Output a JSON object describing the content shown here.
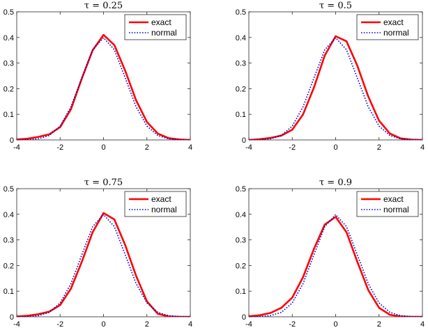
{
  "colors": {
    "exact": "#ff0000",
    "normal": "#0000cc",
    "axis": "#262626",
    "background": "#ffffff"
  },
  "chart_data": [
    {
      "type": "line",
      "title": "τ = 0.25",
      "xlim": [
        -4,
        4
      ],
      "ylim": [
        0,
        0.5
      ],
      "xticks": [
        "-4",
        "-2",
        "0",
        "2",
        "4"
      ],
      "yticks": [
        "0",
        "0.1",
        "0.2",
        "0.3",
        "0.4",
        "0.5"
      ],
      "legend": {
        "position": "top-right",
        "entries": [
          "exact",
          "normal"
        ]
      },
      "series": [
        {
          "name": "exact",
          "style": "solid",
          "x": [
            -4,
            -3.5,
            -3,
            -2.5,
            -2,
            -1.5,
            -1,
            -0.5,
            0,
            0.5,
            1,
            1.5,
            2,
            2.5,
            3,
            3.5,
            4
          ],
          "y": [
            0.002,
            0.005,
            0.012,
            0.022,
            0.05,
            0.12,
            0.24,
            0.35,
            0.41,
            0.37,
            0.27,
            0.155,
            0.07,
            0.025,
            0.007,
            0.002,
            0.0
          ]
        },
        {
          "name": "normal",
          "style": "dotted",
          "x": [
            -4,
            -3.5,
            -3,
            -2.5,
            -2,
            -1.5,
            -1,
            -0.5,
            0,
            0.5,
            1,
            1.5,
            2,
            2.5,
            3,
            3.5,
            4
          ],
          "y": [
            0.0001,
            0.0009,
            0.0044,
            0.0175,
            0.054,
            0.1295,
            0.242,
            0.352,
            0.399,
            0.352,
            0.242,
            0.1295,
            0.054,
            0.0175,
            0.0044,
            0.0009,
            0.0001
          ]
        }
      ]
    },
    {
      "type": "line",
      "title": "τ = 0.5",
      "xlim": [
        -4,
        4
      ],
      "ylim": [
        0,
        0.5
      ],
      "xticks": [
        "-4",
        "-2",
        "0",
        "2",
        "4"
      ],
      "yticks": [
        "0",
        "0.1",
        "0.2",
        "0.3",
        "0.4",
        "0.5"
      ],
      "legend": {
        "position": "top-right",
        "entries": [
          "exact",
          "normal"
        ]
      },
      "series": [
        {
          "name": "exact",
          "style": "solid",
          "x": [
            -4,
            -3.5,
            -3,
            -2.5,
            -2,
            -1.5,
            -1,
            -0.5,
            0,
            0.5,
            1,
            1.5,
            2,
            2.5,
            3,
            3.5,
            4
          ],
          "y": [
            0.0,
            0.003,
            0.008,
            0.017,
            0.04,
            0.1,
            0.205,
            0.33,
            0.405,
            0.385,
            0.29,
            0.17,
            0.075,
            0.025,
            0.006,
            0.001,
            0.0
          ]
        },
        {
          "name": "normal",
          "style": "dotted",
          "x": [
            -4,
            -3.5,
            -3,
            -2.5,
            -2,
            -1.5,
            -1,
            -0.5,
            0,
            0.5,
            1,
            1.5,
            2,
            2.5,
            3,
            3.5,
            4
          ],
          "y": [
            0.0001,
            0.0009,
            0.0044,
            0.0175,
            0.054,
            0.1295,
            0.242,
            0.352,
            0.399,
            0.352,
            0.242,
            0.1295,
            0.054,
            0.0175,
            0.0044,
            0.0009,
            0.0001
          ]
        }
      ]
    },
    {
      "type": "line",
      "title": "τ = 0.75",
      "xlim": [
        -4,
        4
      ],
      "ylim": [
        0,
        0.5
      ],
      "xticks": [
        "-4",
        "-2",
        "0",
        "2",
        "4"
      ],
      "yticks": [
        "0",
        "0.1",
        "0.2",
        "0.3",
        "0.4",
        "0.5"
      ],
      "legend": {
        "position": "top-right",
        "entries": [
          "exact",
          "normal"
        ]
      },
      "series": [
        {
          "name": "exact",
          "style": "solid",
          "x": [
            -4,
            -3.5,
            -3,
            -2.5,
            -2,
            -1.5,
            -1,
            -0.5,
            0,
            0.5,
            1,
            1.5,
            2,
            2.5,
            3,
            3.5,
            4
          ],
          "y": [
            0.001,
            0.004,
            0.01,
            0.02,
            0.046,
            0.11,
            0.215,
            0.33,
            0.405,
            0.38,
            0.28,
            0.16,
            0.06,
            0.012,
            0.001,
            0.0,
            0.0
          ]
        },
        {
          "name": "normal",
          "style": "dotted",
          "x": [
            -4,
            -3.5,
            -3,
            -2.5,
            -2,
            -1.5,
            -1,
            -0.5,
            0,
            0.5,
            1,
            1.5,
            2,
            2.5,
            3,
            3.5,
            4
          ],
          "y": [
            0.0001,
            0.0009,
            0.0044,
            0.0175,
            0.054,
            0.1295,
            0.242,
            0.352,
            0.399,
            0.352,
            0.242,
            0.1295,
            0.054,
            0.0175,
            0.0044,
            0.0009,
            0.0001
          ]
        }
      ]
    },
    {
      "type": "line",
      "title": "τ = 0.9",
      "xlim": [
        -4,
        4
      ],
      "ylim": [
        0,
        0.5
      ],
      "xticks": [
        "-4",
        "-2",
        "0",
        "2",
        "4"
      ],
      "yticks": [
        "0",
        "0.1",
        "0.2",
        "0.3",
        "0.4",
        "0.5"
      ],
      "legend": {
        "position": "top-right",
        "entries": [
          "exact",
          "normal"
        ]
      },
      "series": [
        {
          "name": "exact",
          "style": "solid",
          "x": [
            -4,
            -3.5,
            -3,
            -2.5,
            -2,
            -1.5,
            -1,
            -0.5,
            0,
            0.5,
            1,
            1.5,
            2,
            2.5,
            3,
            3.5,
            4
          ],
          "y": [
            0.002,
            0.006,
            0.015,
            0.035,
            0.075,
            0.155,
            0.265,
            0.36,
            0.39,
            0.33,
            0.215,
            0.105,
            0.035,
            0.008,
            0.001,
            0.0,
            0.0
          ]
        },
        {
          "name": "normal",
          "style": "dotted",
          "x": [
            -4,
            -3.5,
            -3,
            -2.5,
            -2,
            -1.5,
            -1,
            -0.5,
            0,
            0.5,
            1,
            1.5,
            2,
            2.5,
            3,
            3.5,
            4
          ],
          "y": [
            0.0001,
            0.0009,
            0.0044,
            0.0175,
            0.054,
            0.1295,
            0.242,
            0.352,
            0.399,
            0.352,
            0.242,
            0.1295,
            0.054,
            0.0175,
            0.0044,
            0.0009,
            0.0001
          ]
        }
      ]
    }
  ]
}
